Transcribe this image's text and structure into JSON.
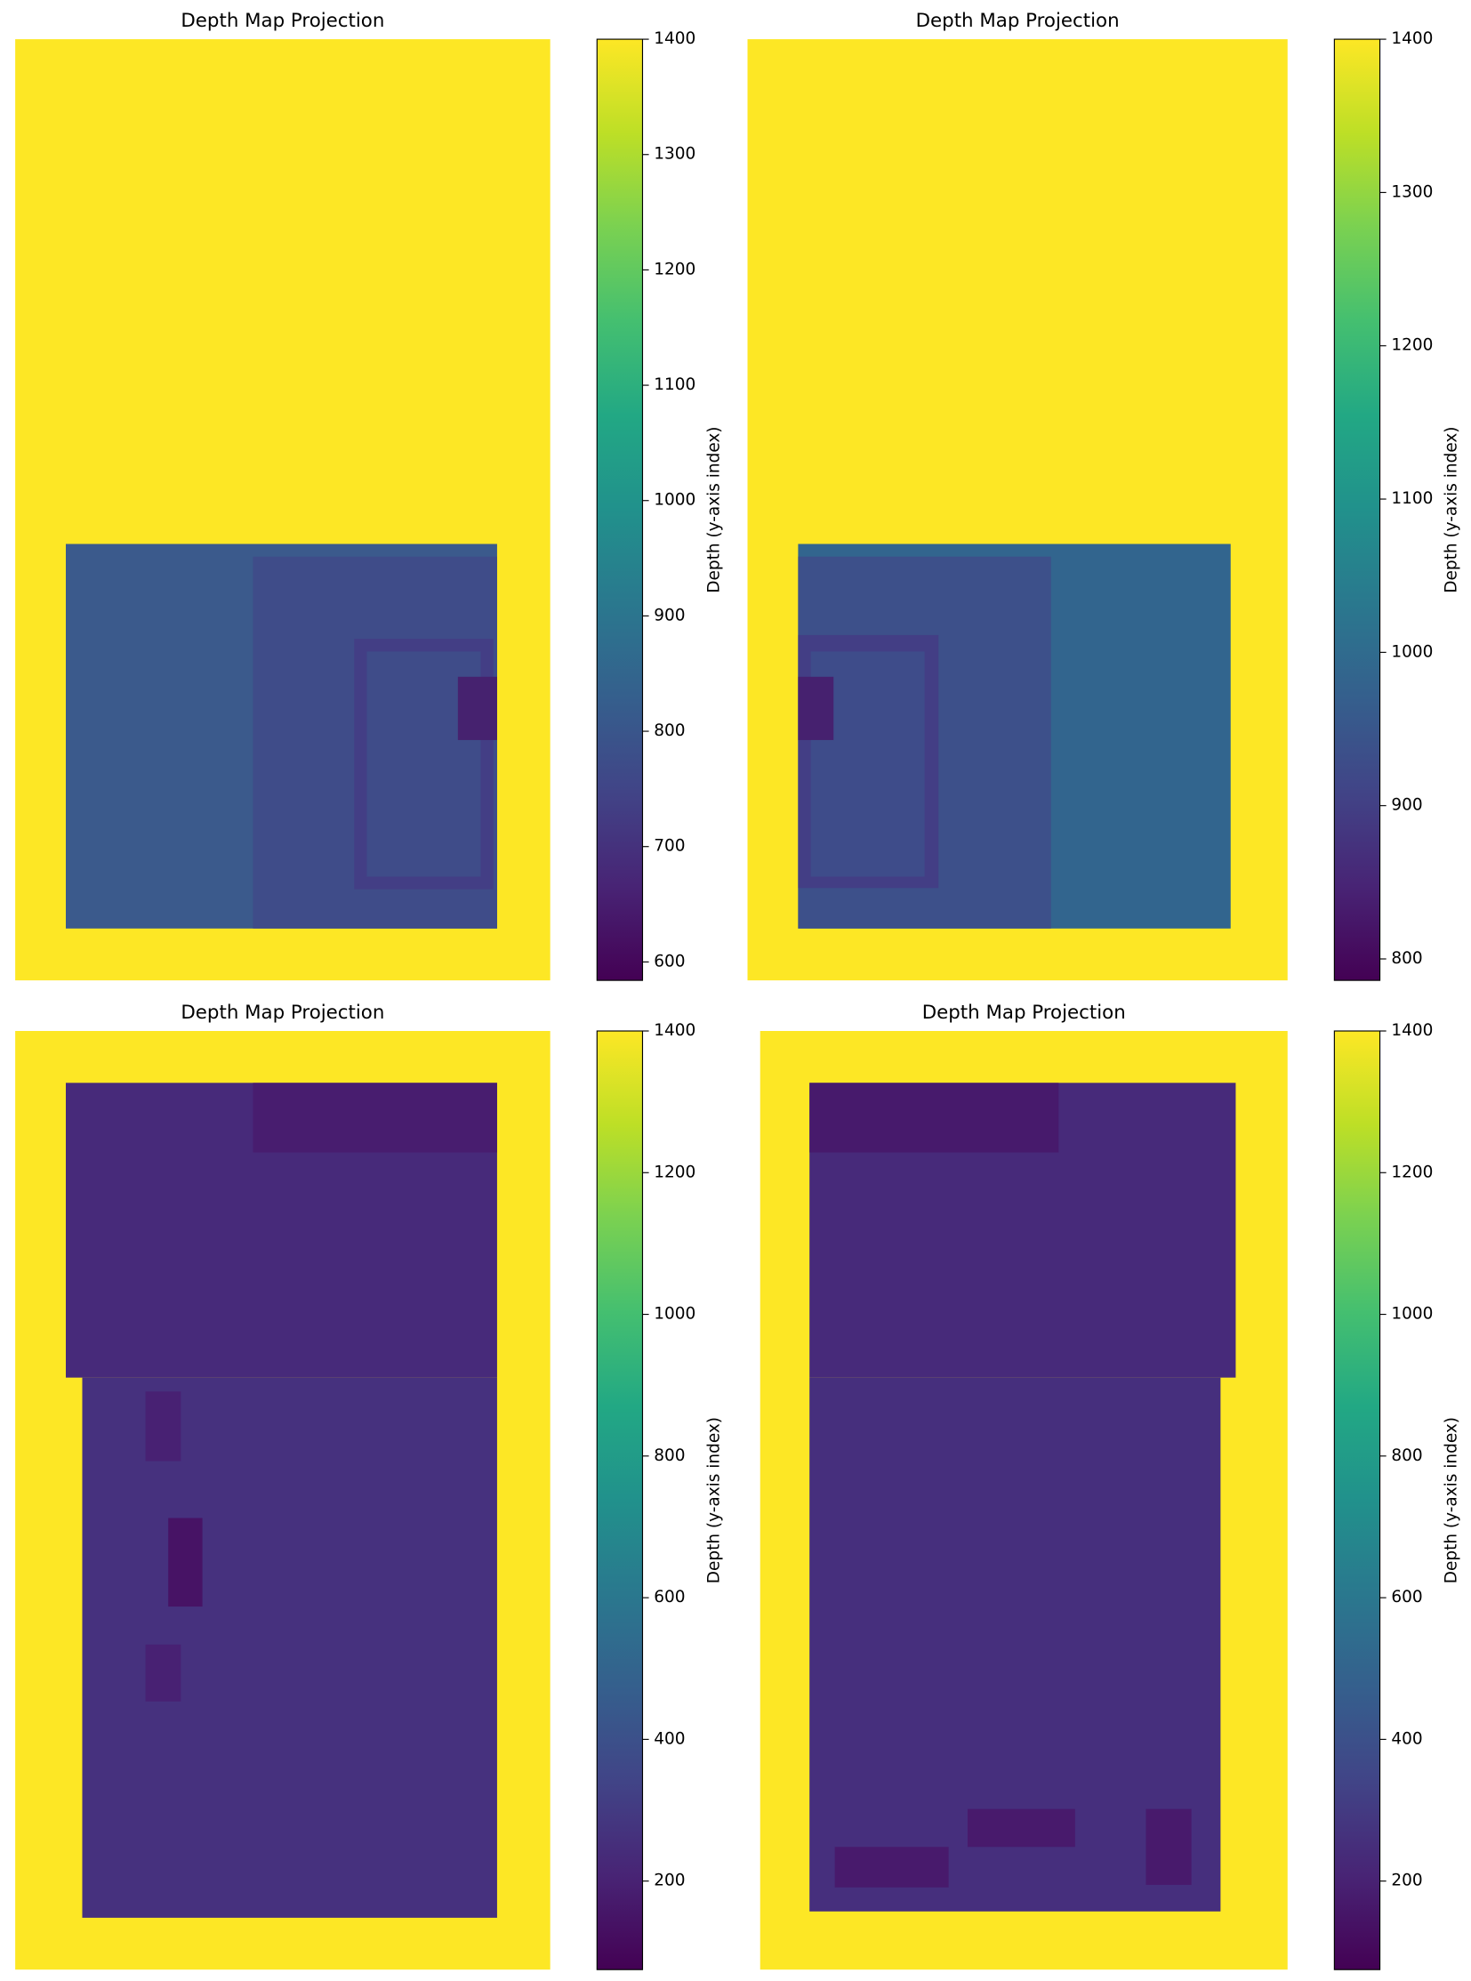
{
  "chart_data": [
    {
      "type": "heatmap",
      "title": "Depth Map Projection",
      "colorbar_label": "Depth (y-axis index)",
      "clim": [
        584,
        1400
      ],
      "cticks": [
        600,
        700,
        800,
        900,
        1000,
        1100,
        1200,
        1300,
        1400
      ]
    },
    {
      "type": "heatmap",
      "title": "Depth Map Projection",
      "colorbar_label": "Depth (y-axis index)",
      "clim": [
        786,
        1400
      ],
      "cticks": [
        800,
        900,
        1000,
        1100,
        1200,
        1300,
        1400
      ]
    },
    {
      "type": "heatmap",
      "title": "Depth Map Projection",
      "colorbar_label": "Depth (y-axis index)",
      "clim": [
        75,
        1400
      ],
      "cticks": [
        200,
        400,
        600,
        800,
        1000,
        1200,
        1400
      ]
    },
    {
      "type": "heatmap",
      "title": "Depth Map Projection",
      "colorbar_label": "Depth (y-axis index)",
      "clim": [
        75,
        1400
      ],
      "cticks": [
        200,
        400,
        600,
        800,
        1000,
        1200,
        1400
      ]
    }
  ]
}
